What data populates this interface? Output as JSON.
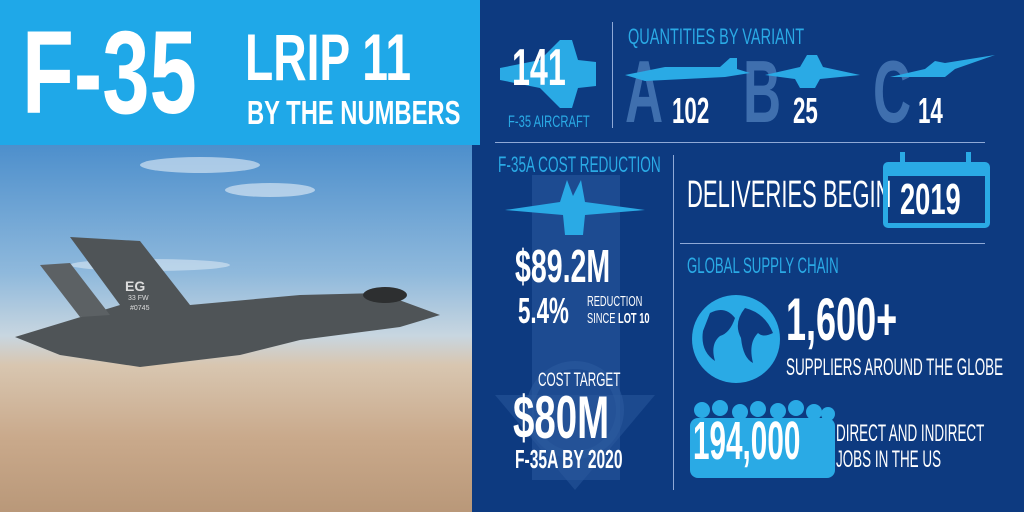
{
  "header": {
    "main": "F-35",
    "lot": "LRIP 11",
    "subtitle": "BY THE NUMBERS"
  },
  "photo": {
    "tail_code": "EG",
    "wing": "33 FW",
    "serial": "#0745"
  },
  "total": {
    "value": "141",
    "label": "F-35 AIRCRAFT"
  },
  "variants": {
    "title": "QUANTITIES BY VARIANT",
    "items": [
      {
        "letter": "A",
        "qty": "102"
      },
      {
        "letter": "B",
        "qty": "25"
      },
      {
        "letter": "C",
        "qty": "14"
      }
    ]
  },
  "cost": {
    "title": "F-35A COST REDUCTION",
    "price": "$89.2M",
    "pct": "5.4%",
    "pct_label_1": "REDUCTION",
    "pct_label_2a": "SINCE",
    "pct_label_2b": "LOT 10",
    "target_label": "COST TARGET",
    "target": "$80M",
    "target_sub": "F-35A BY 2020"
  },
  "deliveries": {
    "label": "DELIVERIES BEGIN",
    "year": "2019"
  },
  "supply": {
    "title": "GLOBAL SUPPLY CHAIN",
    "suppliers": "1,600+",
    "suppliers_label": "SUPPLIERS AROUND THE GLOBE",
    "jobs": "194,000",
    "jobs_label_1": "DIRECT AND INDIRECT",
    "jobs_label_2": "JOBS IN THE US"
  },
  "colors": {
    "background": "#0d3a80",
    "accent": "#2aaae5",
    "banner": "#1fa8e8",
    "muted": "#3f6fae"
  }
}
